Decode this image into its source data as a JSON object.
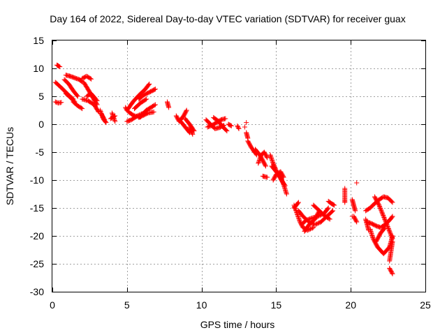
{
  "chart_data": {
    "type": "scatter",
    "title": "Day 164 of 2022, Sidereal Day-to-day VTEC variation (SDTVAR) for receiver guax",
    "xlabel": "GPS time / hours",
    "ylabel": "SDTVAR / TECUs",
    "xlim": [
      0,
      25
    ],
    "ylim": [
      -30,
      15
    ],
    "xticks": [
      "0",
      "5",
      "10",
      "15",
      "20",
      "25"
    ],
    "yticks": [
      "15",
      "10",
      "5",
      "0",
      "-5",
      "-10",
      "-15",
      "-20",
      "-25",
      "-30"
    ],
    "grid": true,
    "marker": "+",
    "color": "#ff0000",
    "segments": [
      {
        "x": [
          0.2,
          0.5,
          0.8,
          1.1,
          1.4
        ],
        "y": [
          7.5,
          6.8,
          6.0,
          5.2,
          4.5
        ]
      },
      {
        "x": [
          0.2,
          0.4,
          0.6
        ],
        "y": [
          4.0,
          3.8,
          3.9
        ]
      },
      {
        "x": [
          0.3,
          0.5
        ],
        "y": [
          10.6,
          10.3
        ]
      },
      {
        "x": [
          0.8,
          1.1,
          1.4,
          1.7
        ],
        "y": [
          8.0,
          7.2,
          6.0,
          5.0
        ]
      },
      {
        "x": [
          0.9,
          1.2,
          1.5
        ],
        "y": [
          5.5,
          4.8,
          4.0
        ]
      },
      {
        "x": [
          0.9,
          1.2,
          1.5,
          1.8,
          2.0
        ],
        "y": [
          8.8,
          8.6,
          8.3,
          8.0,
          7.6
        ]
      },
      {
        "x": [
          1.4,
          1.7,
          2.0
        ],
        "y": [
          4.0,
          3.3,
          2.8
        ]
      },
      {
        "x": [
          2.0,
          2.3,
          2.6
        ],
        "y": [
          8.2,
          8.6,
          8.1
        ]
      },
      {
        "x": [
          2.1,
          2.4,
          2.7,
          3.0
        ],
        "y": [
          7.5,
          6.2,
          4.8,
          3.5
        ]
      },
      {
        "x": [
          2.0,
          2.4,
          2.8,
          3.1
        ],
        "y": [
          4.5,
          4.2,
          3.5,
          2.2
        ]
      },
      {
        "x": [
          2.3,
          2.6,
          3.0
        ],
        "y": [
          5.0,
          5.5,
          4.2
        ]
      },
      {
        "x": [
          3.2,
          3.4,
          3.6
        ],
        "y": [
          2.5,
          1.0,
          0.3
        ]
      },
      {
        "x": [
          3.3,
          3.5
        ],
        "y": [
          1.8,
          0.8
        ]
      },
      {
        "x": [
          4.0,
          4.2
        ],
        "y": [
          2.0,
          0.5
        ]
      },
      {
        "x": [
          3.9,
          4.2
        ],
        "y": [
          1.0,
          1.5
        ]
      },
      {
        "x": [
          4.9,
          5.0,
          5.2,
          5.5,
          5.9
        ],
        "y": [
          3.0,
          2.5,
          2.0,
          1.5,
          1.3
        ]
      },
      {
        "x": [
          5.0,
          5.3,
          5.7,
          6.1,
          6.3
        ],
        "y": [
          0.5,
          0.8,
          1.5,
          2.0,
          2.5
        ]
      },
      {
        "x": [
          5.0,
          5.4,
          5.8,
          6.2,
          6.5
        ],
        "y": [
          2.5,
          4.0,
          5.2,
          6.2,
          7.2
        ]
      },
      {
        "x": [
          5.5,
          5.9,
          6.3
        ],
        "y": [
          2.8,
          3.8,
          4.5
        ]
      },
      {
        "x": [
          5.8,
          6.1,
          6.4,
          6.7,
          6.9
        ],
        "y": [
          4.5,
          5.2,
          5.6,
          6.0,
          6.3
        ]
      },
      {
        "x": [
          6.3,
          6.6,
          6.9
        ],
        "y": [
          2.5,
          3.0,
          3.5
        ]
      },
      {
        "x": [
          5.8,
          6.1,
          6.4,
          6.8
        ],
        "y": [
          1.2,
          1.6,
          2.0,
          2.2
        ]
      },
      {
        "x": [
          7.7,
          7.8
        ],
        "y": [
          4.0,
          3.0
        ]
      },
      {
        "x": [
          8.3,
          8.5,
          8.8,
          9.0
        ],
        "y": [
          1.5,
          0.5,
          1.5,
          2.5
        ]
      },
      {
        "x": [
          8.6,
          8.9,
          9.2
        ],
        "y": [
          0.5,
          -0.5,
          -1.5
        ]
      },
      {
        "x": [
          8.9,
          9.2,
          9.5
        ],
        "y": [
          1.0,
          0.0,
          -1.2
        ]
      },
      {
        "x": [
          9.2,
          9.4
        ],
        "y": [
          -0.5,
          -1.8
        ]
      },
      {
        "x": [
          10.3,
          10.6,
          10.9,
          11.2,
          11.5
        ],
        "y": [
          0.8,
          0.0,
          -0.8,
          -0.6,
          -0.2
        ]
      },
      {
        "x": [
          10.4,
          10.7,
          11.0,
          11.3,
          11.6
        ],
        "y": [
          -0.5,
          -0.2,
          0.3,
          0.8,
          1.0
        ]
      },
      {
        "x": [
          10.8,
          11.1,
          11.4,
          11.7
        ],
        "y": [
          1.2,
          0.6,
          -0.4,
          -1.2
        ]
      },
      {
        "x": [
          11.8,
          12.0
        ],
        "y": [
          0.0,
          -0.3
        ]
      },
      {
        "x": [
          12.4,
          12.5
        ],
        "y": [
          -0.3,
          -0.8
        ]
      },
      {
        "x": [
          12.9
        ],
        "y": [
          -0.5
        ]
      },
      {
        "x": [
          13.0
        ],
        "y": [
          0.3
        ]
      },
      {
        "x": [
          13.0,
          13.1
        ],
        "y": [
          -1.5,
          -2.5
        ]
      },
      {
        "x": [
          13.1,
          13.3,
          13.5,
          13.7
        ],
        "y": [
          -3.0,
          -4.0,
          -4.8,
          -5.5
        ]
      },
      {
        "x": [
          13.6,
          13.9,
          14.1,
          14.3
        ],
        "y": [
          -4.5,
          -5.5,
          -6.5,
          -7.5
        ]
      },
      {
        "x": [
          13.8,
          14.0,
          14.2,
          14.4
        ],
        "y": [
          -7.0,
          -5.5,
          -5.0,
          -6.0
        ]
      },
      {
        "x": [
          14.1,
          14.4
        ],
        "y": [
          -9.3,
          -9.5
        ]
      },
      {
        "x": [
          14.6,
          14.8,
          15.0,
          15.2,
          15.4,
          15.6
        ],
        "y": [
          -5.5,
          -7.0,
          -8.3,
          -9.3,
          -10.2,
          -11.0
        ]
      },
      {
        "x": [
          14.7,
          15.0,
          15.3,
          15.5,
          15.7
        ],
        "y": [
          -7.5,
          -8.5,
          -9.5,
          -10.8,
          -12.5
        ]
      },
      {
        "x": [
          14.8,
          15.0,
          15.3,
          15.5
        ],
        "y": [
          -10.0,
          -9.0,
          -8.5,
          -9.5
        ]
      },
      {
        "x": [
          16.2,
          16.4,
          16.6,
          16.8,
          17.1,
          17.5
        ],
        "y": [
          -14.5,
          -16.0,
          -17.5,
          -18.5,
          -19.0,
          -18.5
        ]
      },
      {
        "x": [
          16.5,
          16.8,
          17.2,
          17.6,
          18.0,
          18.4,
          18.8
        ],
        "y": [
          -15.5,
          -16.5,
          -17.5,
          -18.0,
          -17.5,
          -16.5,
          -15.5
        ]
      },
      {
        "x": [
          16.7,
          17.0,
          17.4,
          17.8,
          18.2,
          18.5
        ],
        "y": [
          -18.0,
          -17.2,
          -16.8,
          -16.5,
          -16.0,
          -15.0
        ]
      },
      {
        "x": [
          16.9,
          17.2,
          17.6,
          17.9
        ],
        "y": [
          -19.2,
          -18.0,
          -17.0,
          -15.5
        ]
      },
      {
        "x": [
          17.5,
          17.9,
          18.3,
          18.6
        ],
        "y": [
          -14.5,
          -15.5,
          -16.5,
          -17.0
        ]
      },
      {
        "x": [
          18.5,
          18.7,
          18.9
        ],
        "y": [
          -13.8,
          -14.2,
          -14.5
        ]
      },
      {
        "x": [
          16.2,
          16.5
        ],
        "y": [
          -15.0,
          -14.0
        ]
      },
      {
        "x": [
          19.6,
          19.6,
          19.6,
          19.6
        ],
        "y": [
          -11.5,
          -12.5,
          -13.5,
          -14.0
        ]
      },
      {
        "x": [
          20.1
        ],
        "y": [
          -16.5
        ]
      },
      {
        "x": [
          20.1,
          20.2,
          20.3
        ],
        "y": [
          -13.5,
          -14.5,
          -15.5
        ]
      },
      {
        "x": [
          20.2,
          20.4
        ],
        "y": [
          -16.5,
          -17.5
        ]
      },
      {
        "x": [
          20.4
        ],
        "y": [
          -10.5
        ]
      },
      {
        "x": [
          21.0,
          21.2
        ],
        "y": [
          -17.0,
          -19.0
        ]
      },
      {
        "x": [
          21.0,
          21.3,
          21.6,
          21.9,
          22.2,
          22.5,
          22.8
        ],
        "y": [
          -15.5,
          -15.0,
          -14.2,
          -13.5,
          -13.0,
          -13.2,
          -14.0
        ]
      },
      {
        "x": [
          21.1,
          21.4,
          21.7,
          22.0,
          22.3,
          22.6,
          22.8
        ],
        "y": [
          -17.5,
          -17.8,
          -18.2,
          -18.5,
          -18.0,
          -17.2,
          -16.5
        ]
      },
      {
        "x": [
          21.3,
          21.5,
          21.8,
          22.2,
          22.6,
          22.8
        ],
        "y": [
          -18.8,
          -20.5,
          -22.0,
          -23.2,
          -22.0,
          -20.0
        ]
      },
      {
        "x": [
          21.6,
          21.9,
          22.2,
          22.5,
          22.8
        ],
        "y": [
          -13.0,
          -14.5,
          -16.5,
          -18.5,
          -20.5
        ]
      },
      {
        "x": [
          21.7,
          22.0,
          22.3
        ],
        "y": [
          -21.0,
          -19.5,
          -18.5
        ]
      },
      {
        "x": [
          22.6,
          22.8
        ],
        "y": [
          -24.5,
          -21.0
        ]
      },
      {
        "x": [
          22.6,
          22.7,
          22.8
        ],
        "y": [
          -25.8,
          -26.3,
          -26.8
        ]
      }
    ]
  }
}
